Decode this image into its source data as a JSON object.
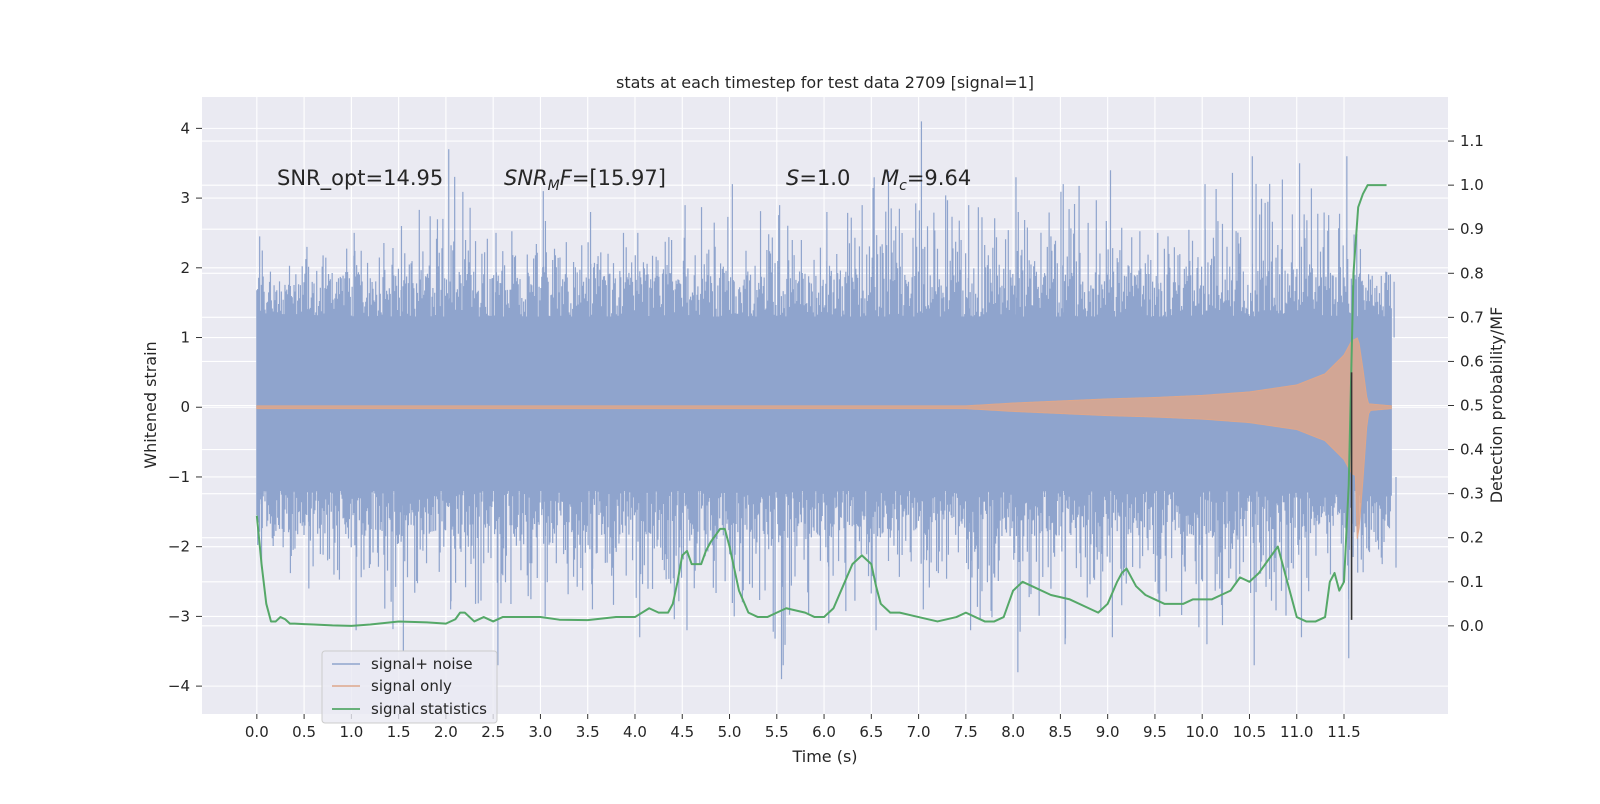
{
  "chart_data": {
    "type": "line",
    "title": "stats at each timestep for test data 2709 [signal=1]",
    "xlabel": "Time (s)",
    "ylabel_left": "Whitened strain",
    "ylabel_right": "Detection probability/MF",
    "xlim": [
      -0.58,
      12.6
    ],
    "ylim_left": [
      -4.4,
      4.45
    ],
    "ylim_right": [
      -0.2,
      1.2
    ],
    "x_ticks": [
      0.0,
      0.5,
      1.0,
      1.5,
      2.0,
      2.5,
      3.0,
      3.5,
      4.0,
      4.5,
      5.0,
      5.5,
      6.0,
      6.5,
      7.0,
      7.5,
      8.0,
      8.5,
      9.0,
      9.5,
      10.0,
      10.5,
      11.0,
      11.5
    ],
    "x_tick_labels": [
      "0.0",
      "0.5",
      "1.0",
      "1.5",
      "2.0",
      "2.5",
      "3.0",
      "3.5",
      "4.0",
      "4.5",
      "5.0",
      "5.5",
      "6.0",
      "6.5",
      "7.0",
      "7.5",
      "8.0",
      "8.5",
      "9.0",
      "9.5",
      "10.0",
      "10.5",
      "11.0",
      "11.5"
    ],
    "y_left_ticks": [
      -4,
      -3,
      -2,
      -1,
      0,
      1,
      2,
      3,
      4
    ],
    "y_left_tick_labels": [
      "−4",
      "−3",
      "−2",
      "−1",
      "0",
      "1",
      "2",
      "3",
      "4"
    ],
    "y_right_ticks": [
      0.0,
      0.1,
      0.2,
      0.3,
      0.4,
      0.5,
      0.6,
      0.7,
      0.8,
      0.9,
      1.0,
      1.1
    ],
    "y_right_tick_labels": [
      "0.0",
      "0.1",
      "0.2",
      "0.3",
      "0.4",
      "0.5",
      "0.6",
      "0.7",
      "0.8",
      "0.9",
      "1.0",
      "1.1"
    ],
    "grid": true,
    "legend_position": "lower-left",
    "annotations": {
      "snr_opt": "SNR_opt=14.95",
      "snr_mf_var": "SNR",
      "snr_mf_sub": "M",
      "snr_mf_var2": "F",
      "snr_mf_value": "=[15.97]",
      "s_var": "S",
      "s_value": "=1.0",
      "mc_var": "M",
      "mc_sub": "c",
      "mc_value": "=9.64"
    },
    "series": [
      {
        "name": "signal+ noise",
        "axis": "left",
        "color": "#8fa4cd",
        "description_x_range": [
          0.0,
          12.0
        ],
        "dense_band": [
          -1.2,
          1.3
        ],
        "upper_envelope": [
          [
            0.0,
            2.45
          ],
          [
            0.5,
            2.3
          ],
          [
            1.0,
            2.5
          ],
          [
            1.5,
            2.6
          ],
          [
            2.0,
            3.7
          ],
          [
            2.5,
            2.5
          ],
          [
            3.0,
            3.1
          ],
          [
            3.5,
            2.8
          ],
          [
            4.0,
            2.5
          ],
          [
            4.5,
            2.9
          ],
          [
            5.0,
            3.2
          ],
          [
            5.5,
            2.9
          ],
          [
            6.0,
            2.8
          ],
          [
            6.5,
            3.3
          ],
          [
            7.0,
            4.1
          ],
          [
            7.5,
            2.9
          ],
          [
            8.0,
            3.3
          ],
          [
            8.5,
            3.2
          ],
          [
            9.0,
            3.4
          ],
          [
            9.5,
            2.5
          ],
          [
            10.0,
            3.2
          ],
          [
            10.5,
            3.6
          ],
          [
            11.0,
            3.5
          ],
          [
            11.5,
            3.6
          ],
          [
            12.0,
            1.8
          ]
        ],
        "lower_envelope": [
          [
            0.0,
            -2.3
          ],
          [
            0.5,
            -2.6
          ],
          [
            1.0,
            -3.2
          ],
          [
            1.5,
            -3.5
          ],
          [
            2.0,
            -2.9
          ],
          [
            2.5,
            -3.7
          ],
          [
            3.0,
            -3.0
          ],
          [
            3.5,
            -2.9
          ],
          [
            4.0,
            -3.3
          ],
          [
            4.5,
            -3.2
          ],
          [
            5.0,
            -3.0
          ],
          [
            5.5,
            -3.9
          ],
          [
            6.0,
            -3.1
          ],
          [
            6.5,
            -3.2
          ],
          [
            7.0,
            -2.9
          ],
          [
            7.5,
            -3.2
          ],
          [
            8.0,
            -3.8
          ],
          [
            8.5,
            -3.4
          ],
          [
            9.0,
            -3.3
          ],
          [
            9.5,
            -3.0
          ],
          [
            10.0,
            -3.4
          ],
          [
            10.5,
            -3.7
          ],
          [
            11.0,
            -3.3
          ],
          [
            11.5,
            -3.6
          ],
          [
            12.0,
            -2.3
          ]
        ]
      },
      {
        "name": "signal only",
        "axis": "left",
        "color": "#dea78b",
        "amplitude_envelope": [
          [
            0.0,
            0.02
          ],
          [
            7.5,
            0.02
          ],
          [
            8.0,
            0.06
          ],
          [
            8.5,
            0.09
          ],
          [
            9.0,
            0.12
          ],
          [
            9.5,
            0.14
          ],
          [
            10.0,
            0.17
          ],
          [
            10.5,
            0.22
          ],
          [
            11.0,
            0.32
          ],
          [
            11.3,
            0.48
          ],
          [
            11.5,
            0.75
          ],
          [
            11.58,
            0.95
          ],
          [
            11.65,
            1.0
          ],
          [
            11.7,
            0.55
          ],
          [
            11.75,
            0.05
          ],
          [
            12.0,
            0.02
          ]
        ]
      },
      {
        "name": "signal statistics",
        "axis": "right",
        "color": "#55a868",
        "x": [
          0.0,
          0.05,
          0.1,
          0.15,
          0.2,
          0.25,
          0.3,
          0.35,
          0.4,
          0.5,
          0.6,
          0.8,
          1.0,
          1.2,
          1.5,
          1.8,
          2.0,
          2.1,
          2.15,
          2.2,
          2.3,
          2.4,
          2.5,
          2.6,
          2.7,
          2.8,
          3.0,
          3.2,
          3.5,
          3.8,
          4.0,
          4.15,
          4.25,
          4.35,
          4.4,
          4.45,
          4.5,
          4.55,
          4.6,
          4.7,
          4.75,
          4.8,
          4.9,
          4.95,
          5.0,
          5.1,
          5.2,
          5.3,
          5.4,
          5.5,
          5.6,
          5.8,
          5.9,
          6.0,
          6.1,
          6.2,
          6.3,
          6.4,
          6.45,
          6.5,
          6.55,
          6.6,
          6.7,
          6.8,
          7.0,
          7.2,
          7.4,
          7.5,
          7.6,
          7.7,
          7.8,
          7.9,
          8.0,
          8.05,
          8.1,
          8.2,
          8.4,
          8.6,
          8.8,
          8.9,
          9.0,
          9.1,
          9.15,
          9.2,
          9.3,
          9.4,
          9.5,
          9.6,
          9.8,
          9.9,
          10.0,
          10.1,
          10.2,
          10.3,
          10.4,
          10.5,
          10.6,
          10.7,
          10.8,
          10.9,
          11.0,
          11.1,
          11.2,
          11.3,
          11.35,
          11.4,
          11.45,
          11.5,
          11.55,
          11.6,
          11.65,
          11.7,
          11.75,
          11.8,
          11.9,
          11.95
        ],
        "values": [
          0.25,
          0.14,
          0.05,
          0.01,
          0.01,
          0.02,
          0.015,
          0.005,
          0.005,
          0.004,
          0.003,
          0.001,
          0.0,
          0.003,
          0.01,
          0.008,
          0.005,
          0.015,
          0.03,
          0.03,
          0.01,
          0.02,
          0.01,
          0.02,
          0.02,
          0.02,
          0.02,
          0.014,
          0.013,
          0.02,
          0.02,
          0.04,
          0.03,
          0.03,
          0.05,
          0.1,
          0.16,
          0.17,
          0.14,
          0.14,
          0.17,
          0.19,
          0.22,
          0.22,
          0.18,
          0.08,
          0.03,
          0.02,
          0.02,
          0.03,
          0.04,
          0.03,
          0.02,
          0.02,
          0.04,
          0.09,
          0.14,
          0.16,
          0.15,
          0.14,
          0.09,
          0.05,
          0.03,
          0.03,
          0.02,
          0.01,
          0.02,
          0.03,
          0.02,
          0.01,
          0.01,
          0.02,
          0.08,
          0.09,
          0.1,
          0.09,
          0.07,
          0.06,
          0.04,
          0.03,
          0.05,
          0.1,
          0.12,
          0.13,
          0.09,
          0.07,
          0.06,
          0.05,
          0.05,
          0.06,
          0.06,
          0.06,
          0.07,
          0.08,
          0.11,
          0.1,
          0.12,
          0.15,
          0.18,
          0.1,
          0.02,
          0.01,
          0.01,
          0.02,
          0.1,
          0.12,
          0.08,
          0.1,
          0.32,
          0.8,
          0.95,
          0.98,
          1.0,
          1.0,
          1.0,
          1.0
        ]
      }
    ]
  }
}
